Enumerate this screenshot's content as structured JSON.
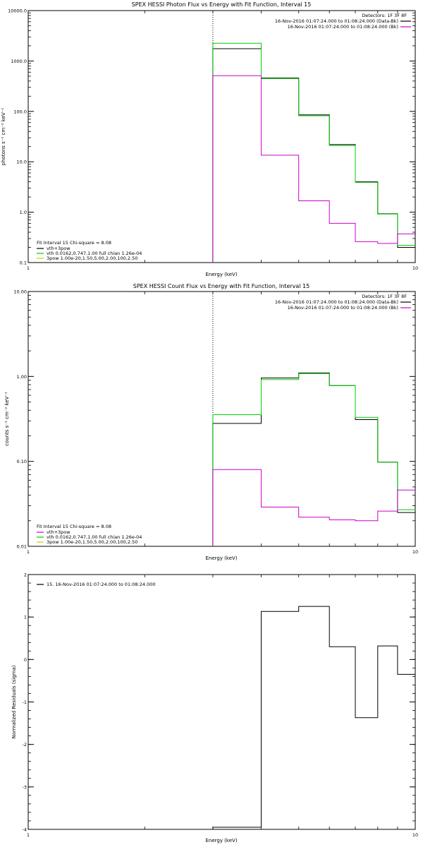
{
  "chart_data": [
    {
      "type": "line",
      "title": "SPEX HESSI Photon Flux vs Energy with Fit Function, Interval 15",
      "xlabel": "Energy (keV)",
      "ylabel": "photons s⁻¹ cm⁻² keV⁻¹",
      "xscale": "log",
      "yscale": "log",
      "xlim": [
        1,
        10
      ],
      "ylim": [
        0.1,
        10000
      ],
      "x_ticks": [
        {
          "value": 1,
          "label": "1"
        },
        {
          "value": 10,
          "label": "10"
        }
      ],
      "y_ticks": [
        {
          "value": 0.1,
          "label": "0.1"
        },
        {
          "value": 1,
          "label": "1.0"
        },
        {
          "value": 10,
          "label": "10.0"
        },
        {
          "value": 100,
          "label": "100.0"
        },
        {
          "value": 1000,
          "label": "1000.0"
        },
        {
          "value": 10000,
          "label": "10000.0"
        }
      ],
      "vline": {
        "x": 3.0,
        "style": "dotted"
      },
      "legend_top": {
        "placement": "top-right",
        "header": "Detectors: 1F 3F 8F",
        "entries": [
          {
            "text": "16-Nov-2016 01:07:24.000 to 01:08:24.000 (Data-Bk)",
            "color": "#000000"
          },
          {
            "text": "16-Nov-2016 01:07:24.000 to 01:08:24.000 (Bk)",
            "color": "#cc00cc"
          }
        ]
      },
      "legend_bottom": {
        "placement": "bottom-left",
        "header": "Fit Interval 15   Chi-square = 8.08",
        "entries": [
          {
            "text": "vth+3pow",
            "color": "#000000"
          },
          {
            "text": "vth 0.0162,0.747,1.00  full chian 1.26e-04",
            "color": "#00cc00"
          },
          {
            "text": "3pow 1.00e-20,1.50,5.00,2.00,100,2.50",
            "color": "#cccc00"
          }
        ]
      },
      "series": [
        {
          "color": "#000000",
          "edges": [
            3,
            4,
            5,
            6,
            7,
            8,
            9,
            10
          ],
          "values": [
            1750,
            460,
            85,
            22,
            4.0,
            0.93,
            0.2
          ]
        },
        {
          "color": "#00cc00",
          "edges": [
            3,
            4,
            5,
            6,
            7,
            8,
            9,
            10
          ],
          "values": [
            2250,
            450,
            82,
            21,
            3.9,
            0.92,
            0.22
          ]
        },
        {
          "color": "#cc00cc",
          "edges": [
            3,
            4,
            5,
            6,
            7,
            8,
            9,
            10
          ],
          "values": [
            510,
            13.5,
            1.68,
            0.6,
            0.26,
            0.24,
            0.37
          ]
        }
      ]
    },
    {
      "type": "line",
      "title": "SPEX HESSI Count Flux vs Energy with Fit Function, Interval 15",
      "xlabel": "Energy (keV)",
      "ylabel": "counts s⁻¹ cm⁻² keV⁻¹",
      "xscale": "log",
      "yscale": "log",
      "xlim": [
        1,
        10
      ],
      "ylim": [
        0.01,
        10
      ],
      "x_ticks": [
        {
          "value": 1,
          "label": "1"
        },
        {
          "value": 10,
          "label": "10"
        }
      ],
      "y_ticks": [
        {
          "value": 0.01,
          "label": "0.01"
        },
        {
          "value": 0.1,
          "label": "0.10"
        },
        {
          "value": 1,
          "label": "1.00"
        },
        {
          "value": 10,
          "label": "10.00"
        }
      ],
      "vline": {
        "x": 3.0,
        "style": "dotted"
      },
      "legend_top": {
        "placement": "top-right",
        "header": "Detectors: 1F 3F 8F",
        "entries": [
          {
            "text": "16-Nov-2016 01:07:24.000 to 01:08:24.000 (Data-Bk)",
            "color": "#000000"
          },
          {
            "text": "16-Nov-2016 01:07:24.000 to 01:08:24.000 (Bk)",
            "color": "#cc00cc"
          }
        ]
      },
      "legend_bottom": {
        "placement": "bottom-left",
        "header": "Fit Interval 15   Chi-square = 8.08",
        "entries": [
          {
            "text": "vth+3pow",
            "color": "#cc00cc"
          },
          {
            "text": "vth 0.0162,0.747,1.00  full chian 1.26e-04",
            "color": "#00cc00"
          },
          {
            "text": "3pow 1.00e-20,1.50,5.00,2.00,100,2.50",
            "color": "#cccc00"
          }
        ]
      },
      "series": [
        {
          "color": "#000000",
          "edges": [
            3,
            4,
            5,
            6,
            7,
            8,
            9,
            10
          ],
          "values": [
            0.28,
            0.96,
            1.1,
            0.78,
            0.31,
            0.098,
            0.025
          ]
        },
        {
          "color": "#00cc00",
          "edges": [
            3,
            4,
            5,
            6,
            7,
            8,
            9,
            10
          ],
          "values": [
            0.355,
            0.92,
            1.08,
            0.78,
            0.33,
            0.098,
            0.027
          ]
        },
        {
          "color": "#cc00cc",
          "edges": [
            3,
            4,
            5,
            6,
            7,
            8,
            9,
            10
          ],
          "values": [
            0.08,
            0.029,
            0.022,
            0.0205,
            0.02,
            0.026,
            0.046
          ]
        }
      ]
    },
    {
      "type": "line",
      "title": "",
      "xlabel": "Energy (keV)",
      "ylabel": "Normalized Residuals (sigma)",
      "xscale": "log",
      "yscale": "linear",
      "xlim": [
        1,
        10
      ],
      "ylim": [
        -4,
        2
      ],
      "x_ticks": [
        {
          "value": 1,
          "label": "1"
        },
        {
          "value": 10,
          "label": "10"
        }
      ],
      "y_ticks": [
        {
          "value": -4,
          "label": "-4"
        },
        {
          "value": -3,
          "label": "-3"
        },
        {
          "value": -2,
          "label": "-2"
        },
        {
          "value": -1,
          "label": "-1"
        },
        {
          "value": 0,
          "label": "0"
        },
        {
          "value": 1,
          "label": "1"
        },
        {
          "value": 2,
          "label": "2"
        }
      ],
      "legend_top": {
        "placement": "top-left",
        "header": "",
        "entries": [
          {
            "text": "15. 16-Nov-2016 01:07:24.000 to 01:08:24.000",
            "color": "#000000"
          }
        ]
      },
      "series": [
        {
          "color": "#000000",
          "edges": [
            3,
            4,
            5,
            6,
            7,
            8,
            9,
            10
          ],
          "values": [
            -3.95,
            1.13,
            1.25,
            0.3,
            -1.37,
            0.32,
            -0.35
          ]
        }
      ]
    }
  ]
}
